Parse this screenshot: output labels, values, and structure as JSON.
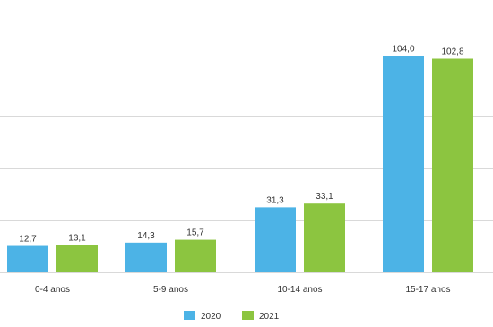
{
  "chart_data": {
    "type": "bar",
    "categories": [
      "0-4 anos",
      "5-9 anos",
      "10-14 anos",
      "15-17 anos"
    ],
    "series": [
      {
        "name": "2020",
        "color": "#4cb3e6",
        "values": [
          12.7,
          14.3,
          31.3,
          104.0
        ],
        "labels": [
          "12,7",
          "14,3",
          "31,3",
          "104,0"
        ]
      },
      {
        "name": "2021",
        "color": "#8cc540",
        "values": [
          13.1,
          15.7,
          33.1,
          102.8
        ],
        "labels": [
          "13,1",
          "15,7",
          "33,1",
          "102,8"
        ]
      }
    ],
    "ylim": [
      0,
      125
    ],
    "grid": true,
    "legend": "bottom-center"
  }
}
